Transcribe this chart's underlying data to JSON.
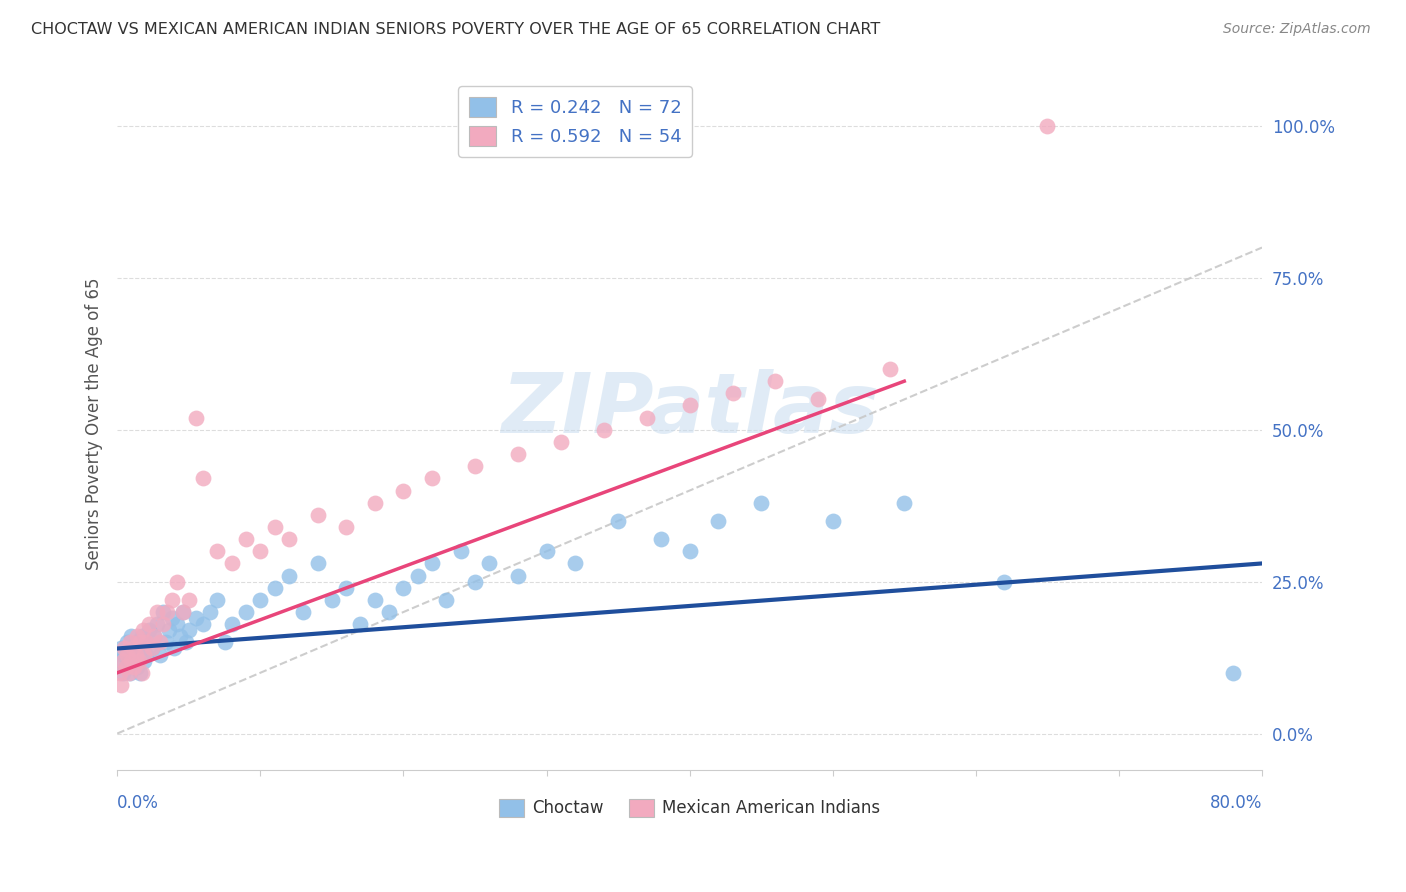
{
  "title": "CHOCTAW VS MEXICAN AMERICAN INDIAN SENIORS POVERTY OVER THE AGE OF 65 CORRELATION CHART",
  "source": "Source: ZipAtlas.com",
  "ylabel": "Seniors Poverty Over the Age of 65",
  "xmin": 0.0,
  "xmax": 0.8,
  "ymin": -0.06,
  "ymax": 1.08,
  "yticks": [
    0.0,
    0.25,
    0.5,
    0.75,
    1.0
  ],
  "ytick_labels": [
    "0.0%",
    "25.0%",
    "50.0%",
    "75.0%",
    "100.0%"
  ],
  "choctaw_color": "#92C0E8",
  "mexican_color": "#F2AABF",
  "choctaw_line_color": "#1F4E9C",
  "mexican_line_color": "#E8457A",
  "choctaw_R": 0.242,
  "choctaw_N": 72,
  "mexican_R": 0.592,
  "mexican_N": 54,
  "title_color": "#333333",
  "axis_color": "#4472C4",
  "legend_R_color": "#4472C4",
  "watermark": "ZIPatlas",
  "background_color": "#FFFFFF",
  "grid_color": "#DDDDDD",
  "choctaw_x": [
    0.002,
    0.003,
    0.004,
    0.005,
    0.006,
    0.007,
    0.008,
    0.009,
    0.01,
    0.01,
    0.011,
    0.012,
    0.013,
    0.014,
    0.015,
    0.016,
    0.017,
    0.018,
    0.019,
    0.02,
    0.02,
    0.022,
    0.024,
    0.026,
    0.028,
    0.03,
    0.032,
    0.034,
    0.036,
    0.038,
    0.04,
    0.042,
    0.044,
    0.046,
    0.048,
    0.05,
    0.055,
    0.06,
    0.065,
    0.07,
    0.075,
    0.08,
    0.09,
    0.1,
    0.11,
    0.12,
    0.13,
    0.14,
    0.15,
    0.16,
    0.17,
    0.18,
    0.19,
    0.2,
    0.21,
    0.22,
    0.23,
    0.24,
    0.25,
    0.26,
    0.28,
    0.3,
    0.32,
    0.35,
    0.38,
    0.4,
    0.42,
    0.45,
    0.5,
    0.55,
    0.62,
    0.78
  ],
  "choctaw_y": [
    0.12,
    0.14,
    0.1,
    0.13,
    0.11,
    0.15,
    0.12,
    0.1,
    0.13,
    0.16,
    0.14,
    0.12,
    0.15,
    0.11,
    0.13,
    0.1,
    0.16,
    0.14,
    0.12,
    0.15,
    0.13,
    0.17,
    0.14,
    0.16,
    0.18,
    0.13,
    0.2,
    0.15,
    0.17,
    0.19,
    0.14,
    0.18,
    0.16,
    0.2,
    0.15,
    0.17,
    0.19,
    0.18,
    0.2,
    0.22,
    0.15,
    0.18,
    0.2,
    0.22,
    0.24,
    0.26,
    0.2,
    0.28,
    0.22,
    0.24,
    0.18,
    0.22,
    0.2,
    0.24,
    0.26,
    0.28,
    0.22,
    0.3,
    0.25,
    0.28,
    0.26,
    0.3,
    0.28,
    0.35,
    0.32,
    0.3,
    0.35,
    0.38,
    0.35,
    0.38,
    0.25,
    0.1
  ],
  "mexican_x": [
    0.002,
    0.003,
    0.004,
    0.005,
    0.006,
    0.007,
    0.008,
    0.009,
    0.01,
    0.011,
    0.012,
    0.013,
    0.014,
    0.015,
    0.016,
    0.017,
    0.018,
    0.019,
    0.02,
    0.022,
    0.024,
    0.026,
    0.028,
    0.03,
    0.032,
    0.035,
    0.038,
    0.042,
    0.046,
    0.05,
    0.055,
    0.06,
    0.07,
    0.08,
    0.09,
    0.1,
    0.11,
    0.12,
    0.14,
    0.16,
    0.18,
    0.2,
    0.22,
    0.25,
    0.28,
    0.31,
    0.34,
    0.37,
    0.4,
    0.43,
    0.46,
    0.49,
    0.54,
    0.65
  ],
  "mexican_y": [
    0.1,
    0.08,
    0.12,
    0.14,
    0.11,
    0.13,
    0.1,
    0.15,
    0.12,
    0.14,
    0.11,
    0.13,
    0.16,
    0.12,
    0.15,
    0.1,
    0.17,
    0.13,
    0.15,
    0.18,
    0.14,
    0.16,
    0.2,
    0.15,
    0.18,
    0.2,
    0.22,
    0.25,
    0.2,
    0.22,
    0.52,
    0.42,
    0.3,
    0.28,
    0.32,
    0.3,
    0.34,
    0.32,
    0.36,
    0.34,
    0.38,
    0.4,
    0.42,
    0.44,
    0.46,
    0.48,
    0.5,
    0.52,
    0.54,
    0.56,
    0.58,
    0.55,
    0.6,
    1.0
  ],
  "choctaw_line_x": [
    0.0,
    0.8
  ],
  "choctaw_line_y": [
    0.14,
    0.28
  ],
  "mexican_line_x": [
    0.0,
    0.55
  ],
  "mexican_line_y": [
    0.1,
    0.58
  ],
  "dash_line_x": [
    0.0,
    0.8
  ],
  "dash_line_y": [
    0.0,
    0.8
  ]
}
